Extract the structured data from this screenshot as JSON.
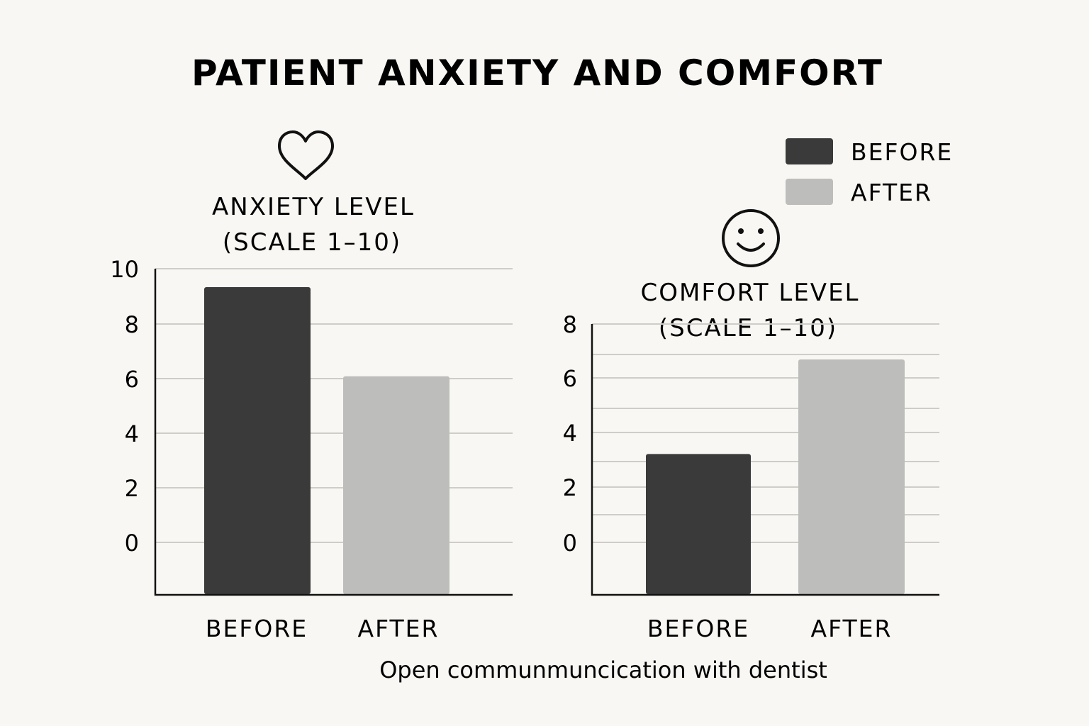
{
  "title": "PATIENT ANXIETY AND COMFORT",
  "caption": "Open communmuncication with dentist",
  "colors": {
    "before": "#3a3a3a",
    "after": "#bdbdbb",
    "background": "#f8f7f3",
    "ink": "#111111"
  },
  "legend": {
    "placement": "top-right",
    "items": [
      {
        "label": "BEFORE",
        "color": "#3a3a3a"
      },
      {
        "label": "AFTER",
        "color": "#bdbdbb"
      }
    ]
  },
  "icons": {
    "anxiety": "heart-outline-icon",
    "comfort": "smiley-face-icon"
  },
  "chart_data": [
    {
      "type": "bar",
      "title_lines": [
        "ANXIETY LEVEL",
        "(SCALE 1–10)"
      ],
      "categories": [
        "BEFORE",
        "AFTER"
      ],
      "values": [
        9.3,
        6.6
      ],
      "yticks": [
        "10",
        "8",
        "6",
        "4",
        "2",
        "0"
      ],
      "ylim": [
        0,
        10
      ],
      "grid": true
    },
    {
      "type": "bar",
      "title_lines": [
        "COMFORT LEVEL",
        "(SCALE 1–10)"
      ],
      "categories": [
        "BEFORE",
        "AFTER"
      ],
      "values": [
        4,
        6.7
      ],
      "yticks": [
        "8",
        "6",
        "4",
        "2",
        "0"
      ],
      "ylim": [
        0,
        8
      ],
      "grid": true
    }
  ]
}
